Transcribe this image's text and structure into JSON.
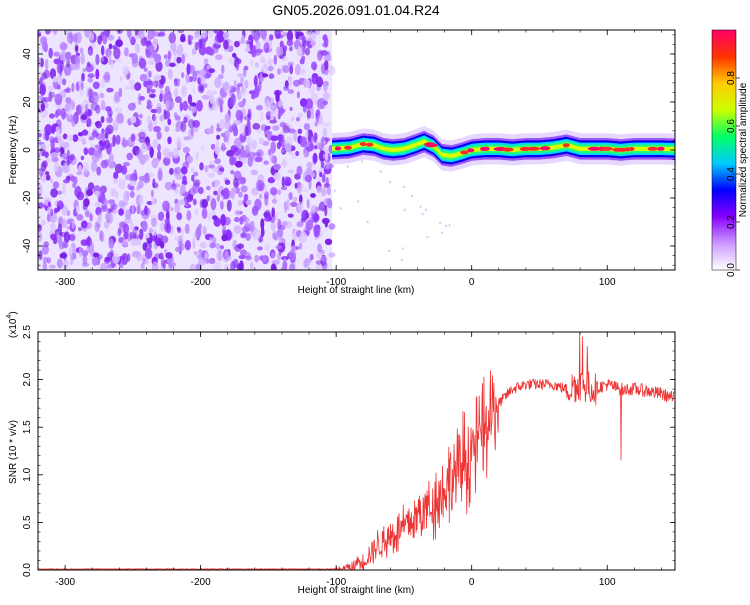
{
  "title": "GN05.2026.091.01.04.R24",
  "chart_data": [
    {
      "type": "heatmap",
      "name": "spectrogram",
      "xlabel": "Height of straight line (km)",
      "ylabel": "Frequency (Hz)",
      "xlim": [
        -320,
        150
      ],
      "ylim": [
        -50,
        50
      ],
      "x_ticks": [
        -300,
        -200,
        -100,
        0,
        100
      ],
      "x_tick_labels": [
        "-300",
        "-200",
        "-100",
        "0",
        "100"
      ],
      "y_ticks": [
        -40,
        -20,
        0,
        20,
        40
      ],
      "y_tick_labels": [
        "-40",
        "-20",
        "0",
        "20",
        "40"
      ],
      "noise_region_x": [
        -320,
        -103
      ],
      "carrier_region_x": [
        -103,
        150
      ],
      "carrier_trace": {
        "x": [
          -103,
          -90,
          -80,
          -72,
          -65,
          -58,
          -50,
          -42,
          -35,
          -28,
          -22,
          -15,
          -8,
          0,
          10,
          20,
          30,
          40,
          50,
          60,
          70,
          80,
          90,
          100,
          110,
          120,
          130,
          140,
          150
        ],
        "freq_hz": [
          0.5,
          1,
          2.5,
          2,
          0.5,
          0,
          0.5,
          2,
          3.5,
          1.5,
          -2,
          -2.5,
          -1.5,
          0,
          0.5,
          0.5,
          0,
          0.5,
          0.5,
          1,
          2,
          0.5,
          0.5,
          0.5,
          0,
          0.5,
          0.5,
          0.5,
          0.3
        ]
      },
      "colorbar": {
        "label": "Normalized spectral amplitude",
        "range": [
          0,
          1
        ],
        "ticks": [
          0,
          0.2,
          0.4,
          0.6,
          0.8
        ],
        "tick_labels": [
          "0.0",
          "0.2",
          "0.4",
          "0.6",
          "0.8"
        ],
        "colors": [
          "#ffffff",
          "#cc99ff",
          "#8800ff",
          "#0000ff",
          "#00ccff",
          "#00ff66",
          "#ccff00",
          "#ffcc00",
          "#ff3300",
          "#ff0066"
        ]
      }
    },
    {
      "type": "line",
      "name": "snr",
      "xlabel": "Height of straight line (km)",
      "ylabel": "SNR (10 * v/v)",
      "y_multiplier": "(x10",
      "y_multiplier_exp": "4",
      "xlim": [
        -320,
        150
      ],
      "ylim": [
        0,
        2.5
      ],
      "x_ticks": [
        -300,
        -200,
        -100,
        0,
        100
      ],
      "x_tick_labels": [
        "-300",
        "-200",
        "-100",
        "0",
        "100"
      ],
      "y_ticks": [
        0,
        0.5,
        1.0,
        1.5,
        2.0,
        2.5
      ],
      "y_tick_labels": [
        "0.0",
        "0.5",
        "1.0",
        "1.5",
        "2.0",
        "2.5"
      ],
      "color": "#ee3333",
      "envelope": {
        "x": [
          -320,
          -100,
          -90,
          -80,
          -70,
          -60,
          -50,
          -40,
          -30,
          -20,
          -10,
          0,
          10,
          20,
          30,
          40,
          50,
          60,
          70,
          80,
          90,
          100,
          110,
          120,
          130,
          140,
          150
        ],
        "y": [
          0.01,
          0.01,
          0.02,
          0.1,
          0.25,
          0.35,
          0.45,
          0.55,
          0.7,
          0.85,
          1.05,
          1.25,
          1.5,
          1.75,
          1.9,
          1.95,
          1.95,
          1.95,
          1.9,
          1.95,
          1.9,
          1.95,
          1.9,
          1.9,
          1.88,
          1.85,
          1.8
        ]
      },
      "spikes": [
        {
          "x": 75,
          "y": 1.25
        },
        {
          "x": 80,
          "y": 2.5
        },
        {
          "x": 82,
          "y": 2.45
        },
        {
          "x": 85,
          "y": 2.35
        },
        {
          "x": 110,
          "y": 1.15
        },
        {
          "x": 112,
          "y": 2.45
        }
      ]
    }
  ]
}
